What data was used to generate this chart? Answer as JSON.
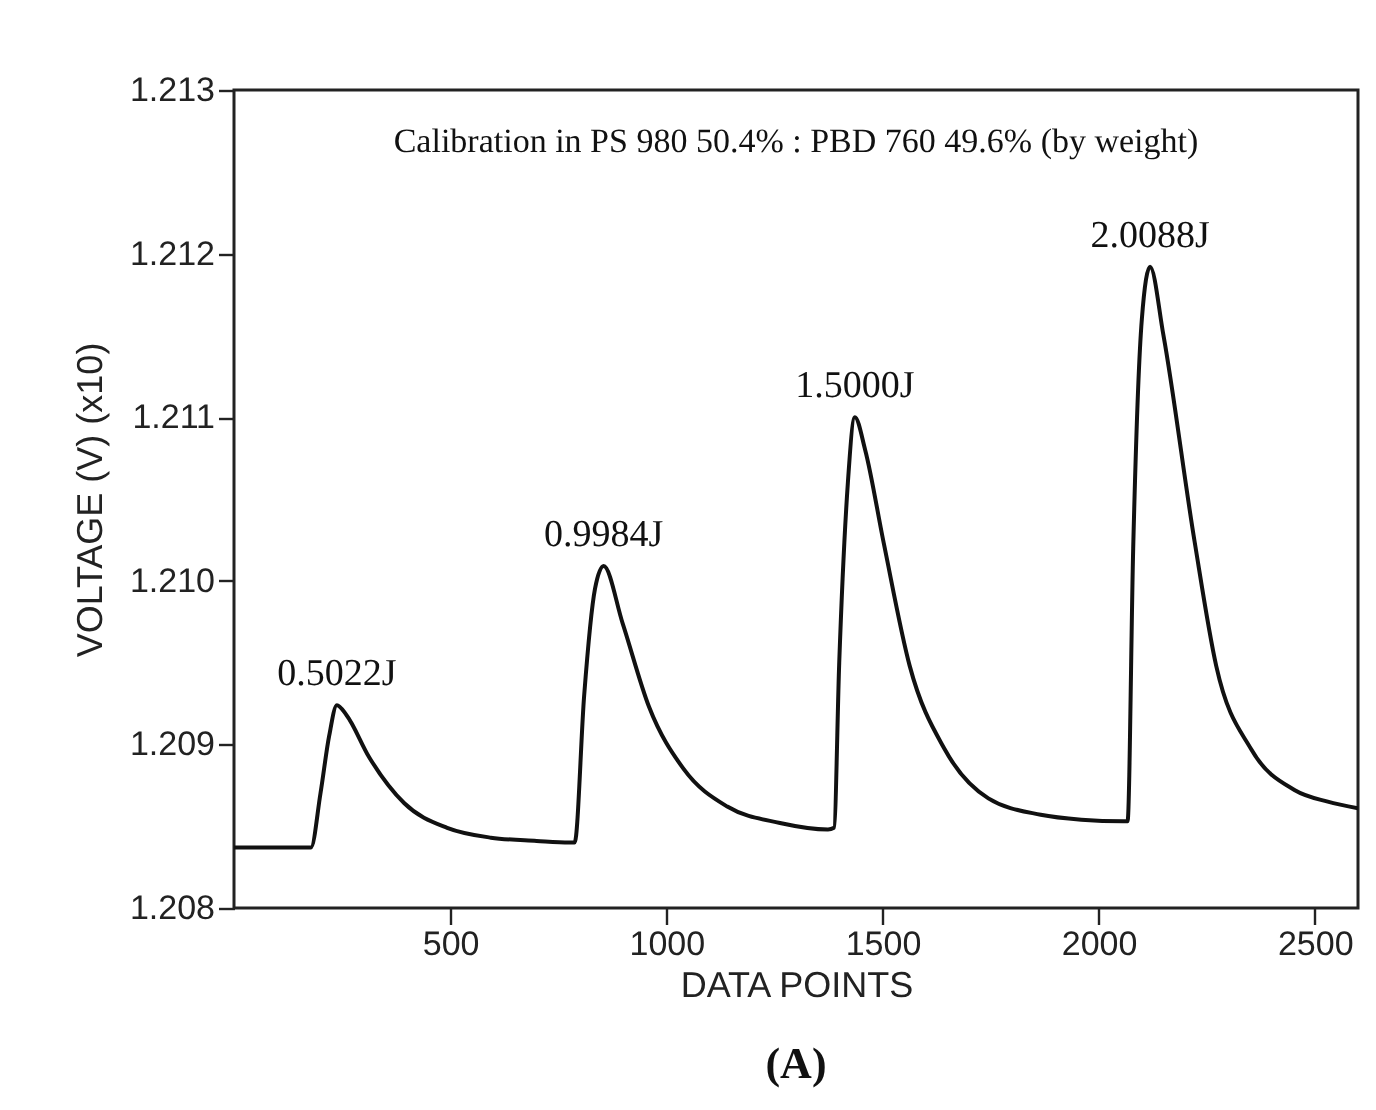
{
  "chart_data": {
    "type": "line",
    "xlabel": "DATA POINTS",
    "ylabel": "VOLTAGE  (V)  (x10)",
    "x": [
      0,
      178,
      200,
      220,
      238,
      260,
      313,
      394,
      493,
      594,
      700,
      776,
      788,
      810,
      835,
      855,
      899,
      960,
      1040,
      1141,
      1263,
      1374,
      1388,
      1400,
      1420,
      1436,
      1460,
      1503,
      1563,
      1644,
      1745,
      1866,
      1960,
      2057,
      2067,
      2080,
      2100,
      2119,
      2150,
      2222,
      2272,
      2353,
      2454,
      2530,
      2600
    ],
    "series": [
      {
        "color": "#111111",
        "values": [
          1.20837,
          1.20837,
          1.2087,
          1.20905,
          1.20924,
          1.20918,
          1.20892,
          1.20864,
          1.20849,
          1.20843,
          1.20841,
          1.2084,
          1.2084,
          1.2093,
          1.20995,
          1.21009,
          1.20974,
          1.20923,
          1.20885,
          1.20862,
          1.20852,
          1.20848,
          1.20849,
          1.2095,
          1.2106,
          1.211,
          1.2108,
          1.21023,
          1.20948,
          1.20897,
          1.20867,
          1.20857,
          1.20854,
          1.20853,
          1.20853,
          1.2102,
          1.2116,
          1.21192,
          1.2115,
          1.21024,
          1.20948,
          1.20897,
          1.20872,
          1.20865,
          1.20861
        ]
      }
    ],
    "xlim": [
      0,
      2600
    ],
    "xticks": [
      500,
      1000,
      1500,
      2000,
      2500
    ],
    "ylim": [
      1.208,
      1.213
    ],
    "yticks": [
      {
        "value": 1.208,
        "label": "1.208"
      },
      1.209,
      {
        "value": 1.21,
        "label": "1.210"
      },
      1.211,
      1.212,
      1.213
    ],
    "annotations": [
      "Calibration in PS 980 50.4% : PBD 760 49.6% (by weight)",
      "(A)",
      {
        "text": "0.5022J",
        "x": 238,
        "y": 1.20924
      },
      {
        "text": "0.9984J",
        "x": 855,
        "y": 1.21009
      },
      {
        "text": "1.5000J",
        "x": 1436,
        "y": 1.211
      },
      {
        "text": "2.0088J",
        "x": 2119,
        "y": 1.21192
      }
    ],
    "grid": false,
    "marker": "none",
    "line_style": "solid"
  }
}
